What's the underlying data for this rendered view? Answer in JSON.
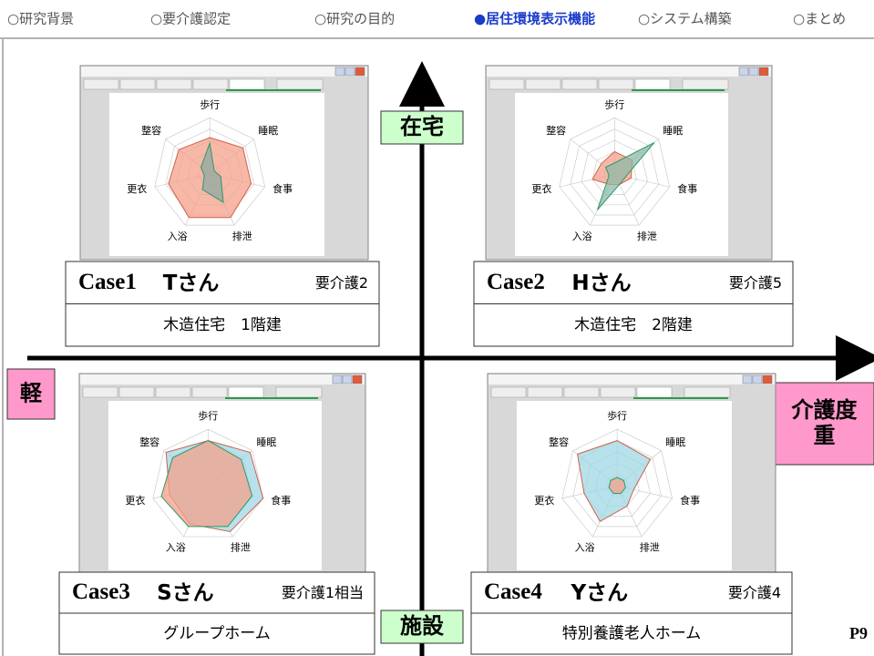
{
  "header": {
    "nav": [
      "○研究背景",
      "○要介護認定",
      "○研究の目的",
      "●居住環境表示機能",
      "○システム構築",
      "○まとめ"
    ],
    "active": 3
  },
  "labels": {
    "top": "在宅",
    "bottom": "施設",
    "left": "軽",
    "right": [
      "介護度",
      "重"
    ]
  },
  "page_number": "P9",
  "cases": [
    {
      "id": "Case1",
      "name": "Tさん",
      "care": "要介護2",
      "housing": "木造住宅　1階建",
      "chart_data": {
        "type": "radar",
        "axes": [
          "歩行",
          "睡眠",
          "食事",
          "排泄",
          "入浴",
          "更衣",
          "整容"
        ],
        "rlim": [
          0,
          100
        ],
        "rticks": [
          20,
          40,
          60,
          80,
          100
        ],
        "series": [
          {
            "color": "#f4a08a",
            "values": [
              65,
              75,
              75,
              85,
              85,
              75,
              70
            ]
          },
          {
            "color": "#8fa9a2",
            "values": [
              55,
              10,
              20,
              55,
              30,
              10,
              20
            ]
          }
        ]
      }
    },
    {
      "id": "Case2",
      "name": "Hさん",
      "care": "要介護5",
      "housing": "木造住宅　2階建",
      "chart_data": {
        "type": "radar",
        "axes": [
          "歩行",
          "睡眠",
          "食事",
          "排泄",
          "入浴",
          "更衣",
          "整容"
        ],
        "rlim": [
          0,
          100
        ],
        "rticks": [
          20,
          40,
          60,
          80,
          100
        ],
        "series": [
          {
            "color": "#f4a08a",
            "values": [
              40,
              40,
              30,
              20,
              20,
              40,
              30
            ]
          },
          {
            "color": "#8fb9a8",
            "values": [
              20,
              90,
              20,
              20,
              70,
              10,
              20
            ]
          }
        ]
      }
    },
    {
      "id": "Case3",
      "name": "Sさん",
      "care": "要介護1相当",
      "housing": "グループホーム",
      "chart_data": {
        "type": "radar",
        "axes": [
          "歩行",
          "睡眠",
          "食事",
          "排泄",
          "入浴",
          "更衣",
          "整容"
        ],
        "rlim": [
          0,
          100
        ],
        "rticks": [
          20,
          40,
          60,
          80,
          100
        ],
        "series": [
          {
            "color": "#9fd8e6",
            "values": [
              80,
              95,
              100,
              90,
              75,
              70,
              95
            ]
          },
          {
            "color": "#f4a08a",
            "values": [
              80,
              75,
              80,
              80,
              80,
              85,
              80
            ]
          }
        ]
      }
    },
    {
      "id": "Case4",
      "name": "Yさん",
      "care": "要介護4",
      "housing": "特別養護老人ホーム",
      "chart_data": {
        "type": "radar",
        "axes": [
          "歩行",
          "睡眠",
          "食事",
          "排泄",
          "入浴",
          "更衣",
          "整容"
        ],
        "rlim": [
          0,
          100
        ],
        "rticks": [
          20,
          40,
          60,
          80,
          100
        ],
        "series": [
          {
            "color": "#9fd8e6",
            "values": [
              80,
              75,
              30,
              40,
              70,
              60,
              90
            ]
          },
          {
            "color": "#f4a08a",
            "values": [
              15,
              15,
              15,
              15,
              15,
              15,
              15
            ]
          }
        ]
      }
    }
  ]
}
